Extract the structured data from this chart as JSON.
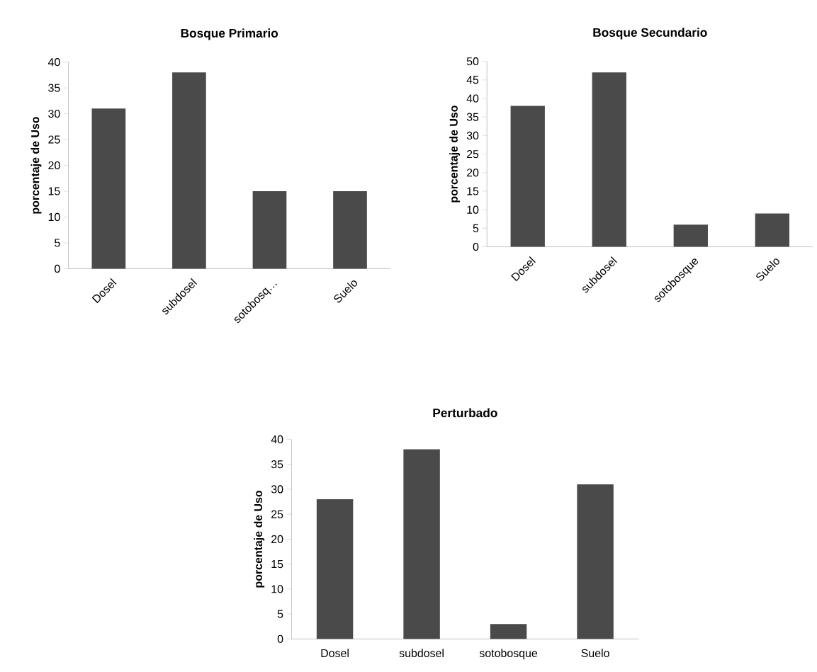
{
  "chart_data": [
    {
      "type": "bar",
      "title": "Bosque Primario",
      "ylabel": "porcentaje de Uso",
      "categories": [
        "Dosel",
        "subdosel",
        "sotobosq…",
        "Suelo"
      ],
      "values": [
        31,
        38,
        15,
        15
      ],
      "color": "#4a4a4a",
      "ylim": [
        0,
        40
      ],
      "yticks": [
        0,
        5,
        10,
        15,
        20,
        25,
        30,
        35,
        40
      ]
    },
    {
      "type": "bar",
      "title": "Bosque Secundario",
      "ylabel": "porcentaje de Uso",
      "categories": [
        "Dosel",
        "subdosel",
        "sotobosque",
        "Suelo"
      ],
      "values": [
        38,
        47,
        6,
        9
      ],
      "color": "#4a4a4a",
      "ylim": [
        0,
        50
      ],
      "yticks": [
        0,
        5,
        10,
        15,
        20,
        25,
        30,
        35,
        40,
        45,
        50
      ]
    },
    {
      "type": "bar",
      "title": "Perturbado",
      "ylabel": "porcentaje de Uso",
      "categories": [
        "Dosel",
        "subdosel",
        "sotobosque",
        "Suelo"
      ],
      "values": [
        28,
        38,
        3,
        31
      ],
      "color": "#4a4a4a",
      "ylim": [
        0,
        40
      ],
      "yticks": [
        0,
        5,
        10,
        15,
        20,
        25,
        30,
        35,
        40
      ]
    }
  ]
}
